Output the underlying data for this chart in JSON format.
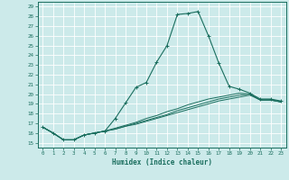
{
  "title": "",
  "xlabel": "Humidex (Indice chaleur)",
  "ylabel": "",
  "bg_color": "#cceaea",
  "grid_color": "#ffffff",
  "line_color": "#1a6e5e",
  "xlim": [
    -0.5,
    23.5
  ],
  "ylim": [
    14.5,
    29.5
  ],
  "xticks": [
    0,
    1,
    2,
    3,
    4,
    5,
    6,
    7,
    8,
    9,
    10,
    11,
    12,
    13,
    14,
    15,
    16,
    17,
    18,
    19,
    20,
    21,
    22,
    23
  ],
  "yticks": [
    15,
    16,
    17,
    18,
    19,
    20,
    21,
    22,
    23,
    24,
    25,
    26,
    27,
    28,
    29
  ],
  "series_main": [
    16.6,
    16.0,
    15.3,
    15.3,
    15.8,
    16.0,
    16.2,
    17.5,
    19.1,
    20.7,
    21.2,
    23.3,
    25.0,
    28.2,
    28.3,
    28.5,
    26.0,
    23.2,
    20.8,
    20.5,
    20.1,
    19.5,
    19.5,
    19.3
  ],
  "series_flat": [
    [
      16.6,
      16.0,
      15.3,
      15.3,
      15.8,
      16.0,
      16.2,
      16.4,
      16.7,
      16.9,
      17.2,
      17.5,
      17.8,
      18.1,
      18.4,
      18.7,
      19.0,
      19.3,
      19.5,
      19.7,
      19.9,
      19.4,
      19.4,
      19.2
    ],
    [
      16.6,
      16.0,
      15.3,
      15.3,
      15.8,
      16.0,
      16.2,
      16.4,
      16.7,
      17.0,
      17.3,
      17.6,
      17.9,
      18.3,
      18.6,
      18.9,
      19.2,
      19.5,
      19.7,
      19.9,
      20.0,
      19.4,
      19.4,
      19.2
    ],
    [
      16.6,
      16.0,
      15.3,
      15.3,
      15.8,
      16.0,
      16.2,
      16.5,
      16.8,
      17.1,
      17.5,
      17.8,
      18.2,
      18.5,
      18.9,
      19.2,
      19.5,
      19.7,
      19.9,
      20.1,
      20.0,
      19.4,
      19.4,
      19.2
    ]
  ],
  "marker": "+"
}
